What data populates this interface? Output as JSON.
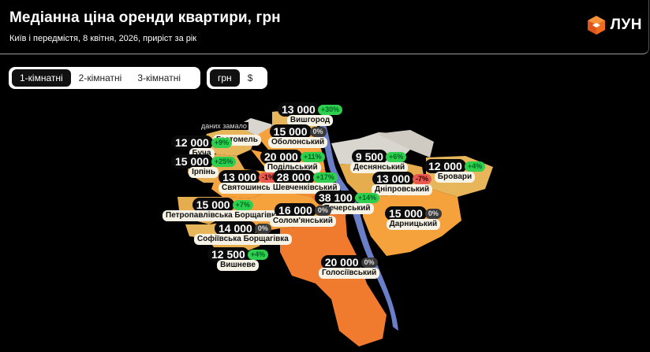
{
  "header": {
    "title": "Медіанна ціна оренди квартири, грн",
    "subtitle": "Київ і передмістя, 8 квітня, 2026, приріст за рік",
    "logo_text": "ЛУН",
    "logo_icon": "orange-cube-icon",
    "logo_color": "#F26A1B"
  },
  "room_tabs": [
    "1-кімнатні",
    "2-кімнатні",
    "3-кімнатні"
  ],
  "room_selected": "1-кімнатні",
  "currency_tabs": [
    "грн",
    "$"
  ],
  "currency_selected": "грн",
  "map": {
    "no_data_note": "даних замало",
    "no_data_region": "Гостомель",
    "colors": {
      "river": "#6b7fc9",
      "high": "#f07a2e",
      "mid": "#f5a23c",
      "low": "#e8b85a",
      "nodata": "#d9d5cf"
    },
    "districts": [
      {
        "name": "Вишгород",
        "price": "13 000",
        "change": "+30%",
        "trend": "up"
      },
      {
        "name": "Оболонський",
        "price": "15 000",
        "change": "0%",
        "trend": "zero"
      },
      {
        "name": "Буча",
        "price": "12 000",
        "change": "+9%",
        "trend": "up"
      },
      {
        "name": "Ірпінь",
        "price": "15 000",
        "change": "+25%",
        "trend": "up"
      },
      {
        "name": "Подільський",
        "price": "20 000",
        "change": "+11%",
        "trend": "up"
      },
      {
        "name": "Деснянський",
        "price": "9 500",
        "change": "+6%",
        "trend": "up"
      },
      {
        "name": "Бровари",
        "price": "12 000",
        "change": "+4%",
        "trend": "up"
      },
      {
        "name": "Святошинськ",
        "price": "13 000",
        "change": "-1%",
        "trend": "down"
      },
      {
        "name": "Шевченківський",
        "price": "28 000",
        "change": "+17%",
        "trend": "up"
      },
      {
        "name": "Дніпровський",
        "price": "13 000",
        "change": "-7%",
        "trend": "down"
      },
      {
        "name": "Печерський",
        "price": "38 100",
        "change": "+14%",
        "trend": "up"
      },
      {
        "name": "Петропавлівська Борщагівка",
        "price": "15 000",
        "change": "+7%",
        "trend": "up"
      },
      {
        "name": "Солом'янський",
        "price": "16 000",
        "change": "0%",
        "trend": "zero"
      },
      {
        "name": "Дарницький",
        "price": "15 000",
        "change": "0%",
        "trend": "zero"
      },
      {
        "name": "Софіївська Борщагівка",
        "price": "14 000",
        "change": "0%",
        "trend": "zero"
      },
      {
        "name": "Вишневе",
        "price": "12 500",
        "change": "+4%",
        "trend": "up"
      },
      {
        "name": "Голосіївський",
        "price": "20 000",
        "change": "0%",
        "trend": "zero"
      }
    ]
  }
}
